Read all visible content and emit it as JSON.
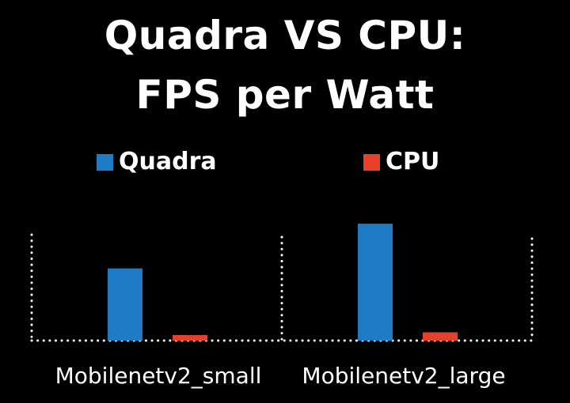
{
  "chart_data": {
    "type": "bar",
    "title_lines": [
      "Quadra VS CPU:",
      "FPS per Watt"
    ],
    "categories": [
      "Mobilenetv2_small",
      "Mobilenetv2_large"
    ],
    "series": [
      {
        "name": "Quadra",
        "color": "#1e7bc4",
        "values": [
          105,
          170
        ]
      },
      {
        "name": "CPU",
        "color": "#e8402a",
        "values": [
          8,
          12
        ]
      }
    ],
    "xlabel": "",
    "ylabel": "",
    "ylim": [
      0,
      200
    ],
    "axis_tick_labels": false,
    "grid": false,
    "legend_position": "top",
    "axis_style": "white dotted baseline and dotted vertical separators"
  }
}
